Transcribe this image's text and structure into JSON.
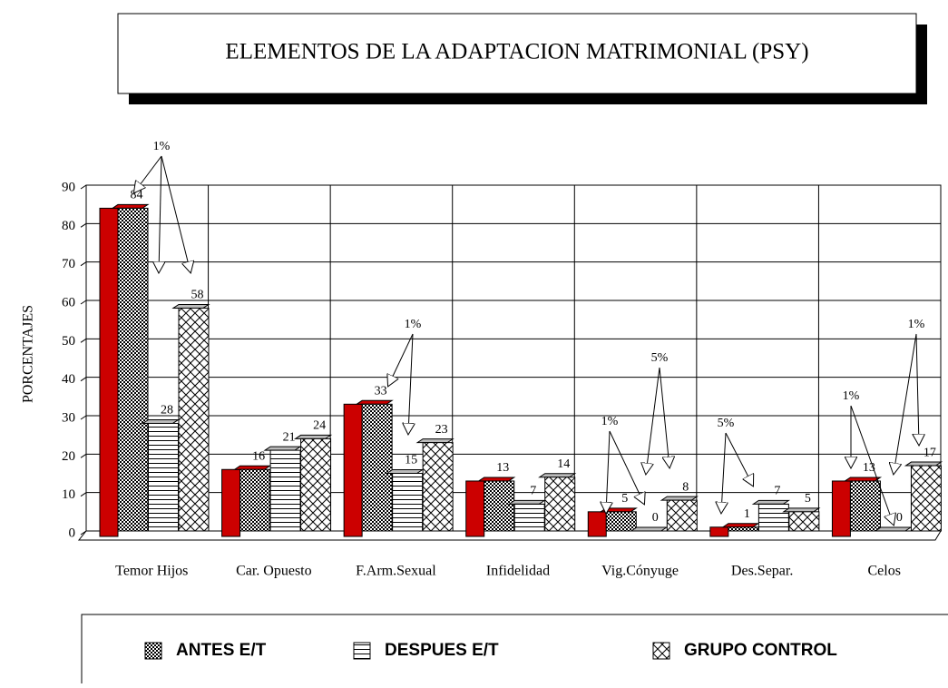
{
  "chart_data": {
    "type": "bar",
    "title": "ELEMENTOS DE LA ADAPTACION MATRIMONIAL (PSY)",
    "y_label": "PORCENTAJES",
    "categories": [
      "Temor Hijos",
      "Car. Opuesto",
      "F.Arm.Sexual",
      "Infidelidad",
      "Vig.Cónyuge",
      "Des.Separ.",
      "Celos"
    ],
    "series": [
      {
        "name": "ANTES E/T",
        "color": "#cc0000",
        "values": [
          84,
          16,
          33,
          13,
          5,
          1,
          13
        ]
      },
      {
        "name": "DESPUES E/T",
        "color": "#000000",
        "values": [
          28,
          21,
          15,
          7,
          0,
          7,
          0
        ]
      },
      {
        "name": "GRUPO CONTROL",
        "color": "#000000",
        "values": [
          58,
          24,
          23,
          14,
          8,
          5,
          17
        ]
      }
    ],
    "ylim": [
      0,
      90
    ],
    "yticks": [
      0,
      10,
      20,
      30,
      40,
      50,
      60,
      70,
      80,
      90
    ],
    "grid": true,
    "annotations": [
      "1%",
      "1%",
      "1%",
      "5%",
      "5%",
      "1%",
      "1%"
    ]
  }
}
